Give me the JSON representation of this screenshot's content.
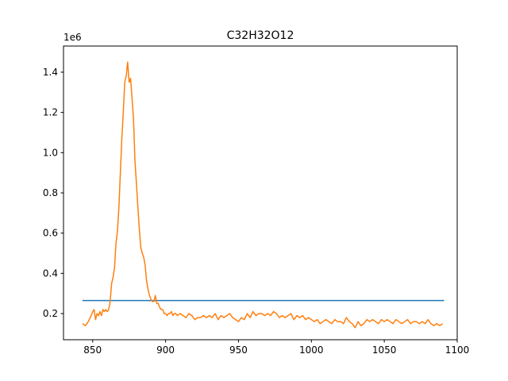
{
  "chart_data": {
    "type": "line",
    "title": "C32H32O12",
    "xlabel": "",
    "ylabel": "",
    "y_offset_label": "1e6",
    "xlim": [
      830,
      1100
    ],
    "ylim": [
      0.07,
      1.53
    ],
    "x_ticks": [
      850,
      900,
      950,
      1000,
      1050,
      1100
    ],
    "x_tick_labels": [
      "850",
      "900",
      "950",
      "1000",
      "1050",
      "1100"
    ],
    "y_ticks": [
      0.2,
      0.4,
      0.6,
      0.8,
      1.0,
      1.2,
      1.4
    ],
    "y_tick_labels": [
      "0.2",
      "0.4",
      "0.6",
      "0.8",
      "1.0",
      "1.2",
      "1.4"
    ],
    "grid": false,
    "series": [
      {
        "color": "#1f77b4",
        "x": [
          843,
          1091
        ],
        "y": [
          0.265,
          0.265
        ]
      },
      {
        "color": "#ff7f0e",
        "x": [
          843,
          845,
          847,
          849,
          850,
          851,
          852,
          853,
          854,
          855,
          856,
          857,
          858,
          859,
          860,
          861,
          862,
          863,
          864,
          865,
          866,
          867,
          868,
          869,
          870,
          871,
          872,
          873,
          874,
          875,
          876,
          877,
          878,
          879,
          880,
          881,
          882,
          883,
          884,
          885,
          886,
          887,
          888,
          889,
          890,
          891,
          892,
          893,
          894,
          895,
          896,
          897,
          898,
          899,
          900,
          901,
          902,
          903,
          904,
          905,
          906,
          907,
          908,
          910,
          912,
          914,
          916,
          918,
          920,
          922,
          924,
          926,
          928,
          930,
          932,
          934,
          936,
          938,
          940,
          942,
          944,
          946,
          948,
          950,
          952,
          954,
          956,
          958,
          960,
          962,
          964,
          966,
          968,
          970,
          972,
          974,
          976,
          978,
          980,
          982,
          984,
          986,
          988,
          990,
          992,
          994,
          996,
          998,
          1000,
          1002,
          1004,
          1006,
          1008,
          1010,
          1012,
          1014,
          1016,
          1018,
          1020,
          1022,
          1024,
          1026,
          1028,
          1030,
          1032,
          1034,
          1036,
          1038,
          1040,
          1042,
          1044,
          1046,
          1048,
          1050,
          1052,
          1054,
          1056,
          1058,
          1060,
          1062,
          1064,
          1066,
          1068,
          1070,
          1072,
          1074,
          1076,
          1078,
          1080,
          1082,
          1084,
          1086,
          1088,
          1090
        ],
        "y": [
          0.15,
          0.14,
          0.16,
          0.19,
          0.21,
          0.22,
          0.17,
          0.2,
          0.19,
          0.21,
          0.19,
          0.22,
          0.21,
          0.22,
          0.21,
          0.22,
          0.26,
          0.35,
          0.38,
          0.43,
          0.55,
          0.61,
          0.73,
          0.9,
          1.07,
          1.2,
          1.35,
          1.38,
          1.45,
          1.35,
          1.37,
          1.27,
          1.17,
          0.96,
          0.85,
          0.73,
          0.62,
          0.53,
          0.5,
          0.48,
          0.44,
          0.36,
          0.32,
          0.29,
          0.27,
          0.26,
          0.26,
          0.29,
          0.25,
          0.25,
          0.23,
          0.22,
          0.22,
          0.2,
          0.2,
          0.19,
          0.2,
          0.2,
          0.21,
          0.19,
          0.2,
          0.2,
          0.19,
          0.2,
          0.19,
          0.18,
          0.2,
          0.19,
          0.17,
          0.18,
          0.18,
          0.19,
          0.18,
          0.19,
          0.18,
          0.2,
          0.17,
          0.19,
          0.18,
          0.19,
          0.2,
          0.18,
          0.17,
          0.16,
          0.18,
          0.17,
          0.2,
          0.18,
          0.21,
          0.19,
          0.2,
          0.2,
          0.19,
          0.2,
          0.19,
          0.21,
          0.2,
          0.18,
          0.19,
          0.18,
          0.19,
          0.2,
          0.17,
          0.19,
          0.18,
          0.19,
          0.17,
          0.18,
          0.17,
          0.16,
          0.17,
          0.15,
          0.16,
          0.17,
          0.16,
          0.15,
          0.17,
          0.16,
          0.16,
          0.15,
          0.18,
          0.16,
          0.15,
          0.13,
          0.16,
          0.14,
          0.15,
          0.17,
          0.16,
          0.17,
          0.16,
          0.15,
          0.17,
          0.16,
          0.17,
          0.16,
          0.15,
          0.17,
          0.16,
          0.15,
          0.16,
          0.17,
          0.15,
          0.16,
          0.16,
          0.15,
          0.16,
          0.15,
          0.17,
          0.15,
          0.14,
          0.15,
          0.14,
          0.15
        ]
      }
    ]
  }
}
